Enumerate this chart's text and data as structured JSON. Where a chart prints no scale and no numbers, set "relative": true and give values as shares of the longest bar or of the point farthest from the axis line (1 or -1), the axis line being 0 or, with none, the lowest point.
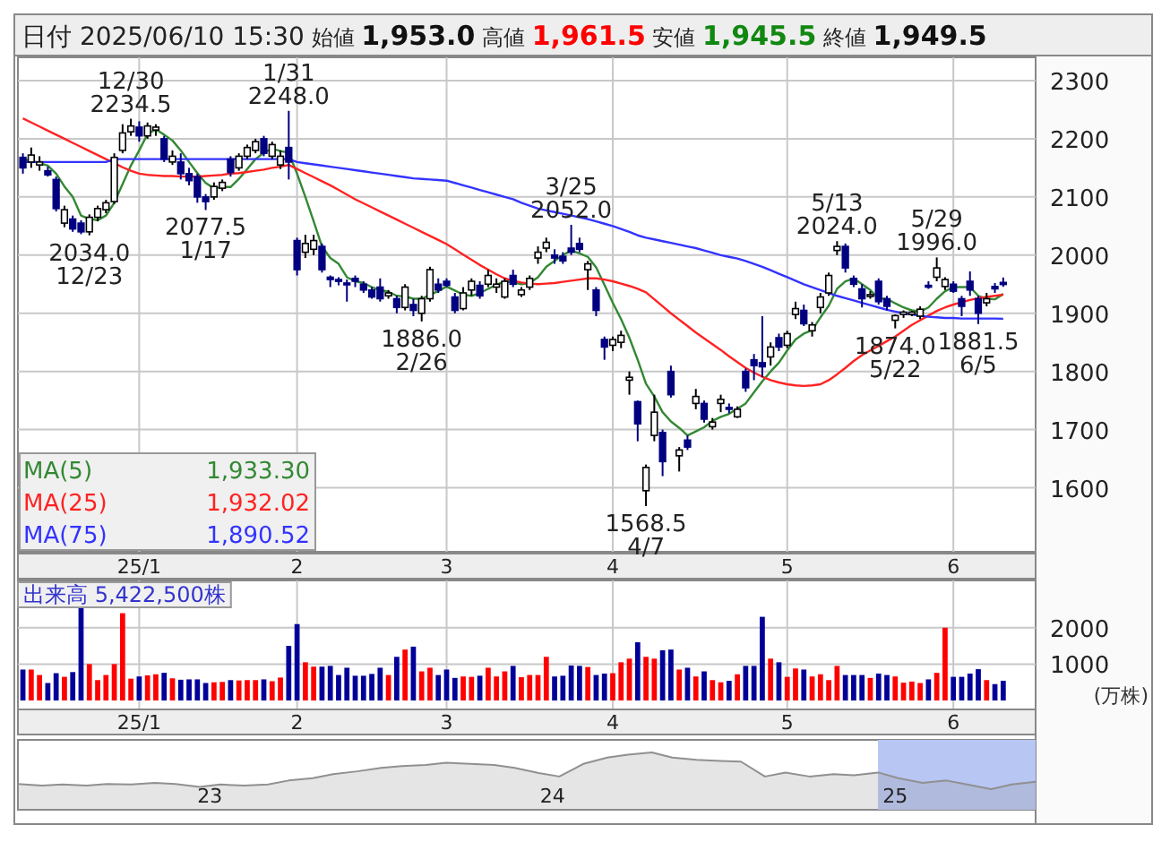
{
  "chart_data": [
    {
      "type": "candlestick",
      "title": "日付 2025/06/10 15:30",
      "annotations": [
        "始値 1,953.0",
        "高値 1,961.5",
        "安値 1,945.5",
        "終値 1,949.5",
        "1,933.30",
        "1,932.02",
        "1,890.52",
        {
          "text": "12/30\n2234.5",
          "y": 2234.5
        },
        {
          "text": "1/31\n2248.0",
          "y": 2248.0
        },
        {
          "text": "3/25\n2052.0",
          "y": 2052.0
        },
        {
          "text": "5/13\n2024.0",
          "y": 2024.0
        },
        {
          "text": "5/29\n1996.0",
          "y": 1996.0
        },
        {
          "text": "2034.0\n12/23",
          "y": 2034.0
        },
        {
          "text": "2077.5\n1/17",
          "y": 2077.5
        },
        {
          "text": "1886.0\n2/26",
          "y": 1886.0
        },
        {
          "text": "1568.5\n4/7",
          "y": 1568.5
        },
        {
          "text": "1874.0\n5/22",
          "y": 1874.0
        },
        {
          "text": "1881.5\n6/5",
          "y": 1881.5
        }
      ],
      "categories": [
        null,
        null,
        null,
        null,
        null,
        null,
        null,
        null,
        null,
        null,
        null,
        null,
        null,
        null,
        "25/1",
        null,
        null,
        null,
        null,
        null,
        null,
        null,
        null,
        null,
        null,
        null,
        null,
        null,
        null,
        null,
        null,
        null,
        null,
        "2",
        null,
        null,
        null,
        null,
        null,
        null,
        null,
        null,
        null,
        null,
        null,
        null,
        null,
        null,
        null,
        null,
        null,
        "3",
        null,
        null,
        null,
        null,
        null,
        null,
        null,
        null,
        null,
        null,
        null,
        null,
        null,
        null,
        null,
        null,
        null,
        null,
        null,
        "4",
        null,
        null,
        null,
        null,
        null,
        null,
        null,
        null,
        null,
        null,
        null,
        null,
        null,
        null,
        null,
        null,
        null,
        null,
        null,
        null,
        "5",
        null,
        null,
        null,
        null,
        null,
        null,
        null,
        null,
        null,
        null,
        null,
        null,
        null,
        null,
        null,
        null,
        null,
        null,
        null,
        "6",
        null,
        null,
        null,
        null,
        null,
        null
      ],
      "ohlc": [
        [
          2168,
          2175,
          2140,
          2150
        ],
        [
          2160,
          2185,
          2150,
          2172
        ],
        [
          2155,
          2170,
          2145,
          2160
        ],
        [
          2145,
          2152,
          2135,
          2138
        ],
        [
          2130,
          2135,
          2075,
          2080
        ],
        [
          2055,
          2085,
          2048,
          2078
        ],
        [
          2062,
          2068,
          2040,
          2045
        ],
        [
          2055,
          2060,
          2036,
          2040
        ],
        [
          2040,
          2070,
          2034,
          2065
        ],
        [
          2065,
          2085,
          2058,
          2080
        ],
        [
          2078,
          2095,
          2072,
          2090
        ],
        [
          2092,
          2175,
          2088,
          2168
        ],
        [
          2180,
          2225,
          2175,
          2210
        ],
        [
          2212,
          2234.5,
          2205,
          2222
        ],
        [
          2220,
          2230,
          2195,
          2205
        ],
        [
          2205,
          2228,
          2200,
          2222
        ],
        [
          2215,
          2225,
          2205,
          2220
        ],
        [
          2200,
          2205,
          2160,
          2165
        ],
        [
          2160,
          2180,
          2155,
          2170
        ],
        [
          2160,
          2175,
          2130,
          2140
        ],
        [
          2140,
          2150,
          2120,
          2128
        ],
        [
          2135,
          2140,
          2090,
          2100
        ],
        [
          2100,
          2105,
          2077.5,
          2092
        ],
        [
          2100,
          2125,
          2095,
          2118
        ],
        [
          2115,
          2130,
          2110,
          2125
        ],
        [
          2165,
          2170,
          2135,
          2142
        ],
        [
          2150,
          2175,
          2145,
          2170
        ],
        [
          2170,
          2190,
          2165,
          2185
        ],
        [
          2180,
          2200,
          2175,
          2195
        ],
        [
          2200,
          2205,
          2170,
          2175
        ],
        [
          2170,
          2195,
          2165,
          2190
        ],
        [
          2155,
          2180,
          2148,
          2170
        ],
        [
          2185,
          2248,
          2130,
          2160
        ],
        [
          2025,
          2030,
          1965,
          1975
        ],
        [
          2005,
          2035,
          1995,
          2020
        ],
        [
          2010,
          2035,
          2000,
          2025
        ],
        [
          2015,
          2020,
          1970,
          1975
        ],
        [
          1962,
          1965,
          1945,
          1958
        ],
        [
          1958,
          1962,
          1948,
          1955
        ],
        [
          1952,
          1958,
          1920,
          1950
        ],
        [
          1960,
          1965,
          1945,
          1955
        ],
        [
          1950,
          1955,
          1935,
          1940
        ],
        [
          1940,
          1945,
          1925,
          1928
        ],
        [
          1945,
          1960,
          1920,
          1925
        ],
        [
          1930,
          1940,
          1925,
          1935
        ],
        [
          1925,
          1930,
          1900,
          1910
        ],
        [
          1910,
          1950,
          1905,
          1945
        ],
        [
          1915,
          1925,
          1895,
          1905
        ],
        [
          1900,
          1930,
          1886,
          1925
        ],
        [
          1925,
          1980,
          1920,
          1975
        ],
        [
          1950,
          1960,
          1935,
          1940
        ],
        [
          1955,
          1960,
          1945,
          1948
        ],
        [
          1928,
          1935,
          1900,
          1905
        ],
        [
          1908,
          1945,
          1905,
          1935
        ],
        [
          1940,
          1960,
          1930,
          1955
        ],
        [
          1948,
          1955,
          1925,
          1930
        ],
        [
          1950,
          1975,
          1945,
          1965
        ],
        [
          1945,
          1960,
          1935,
          1950
        ],
        [
          1928,
          1960,
          1925,
          1955
        ],
        [
          1965,
          1975,
          1945,
          1950
        ],
        [
          1932,
          1945,
          1928,
          1940
        ],
        [
          1945,
          1965,
          1940,
          1960
        ],
        [
          1995,
          2015,
          1985,
          2005
        ],
        [
          2012,
          2030,
          2005,
          2022
        ],
        [
          2000,
          2010,
          1985,
          1995
        ],
        [
          1998,
          2005,
          1985,
          1990
        ],
        [
          2012,
          2052,
          2000,
          2005
        ],
        [
          2020,
          2030,
          2005,
          2010
        ],
        [
          1975,
          1990,
          1940,
          1985
        ],
        [
          1940,
          1945,
          1895,
          1905
        ],
        [
          1855,
          1860,
          1820,
          1842
        ],
        [
          1845,
          1860,
          1835,
          1855
        ],
        [
          1850,
          1870,
          1840,
          1862
        ],
        [
          1785,
          1800,
          1760,
          1790
        ],
        [
          1748,
          1750,
          1680,
          1710
        ],
        [
          1595,
          1640,
          1568.5,
          1635
        ],
        [
          1690,
          1760,
          1680,
          1730
        ],
        [
          1695,
          1700,
          1620,
          1645
        ],
        [
          1800,
          1810,
          1755,
          1760
        ],
        [
          1655,
          1670,
          1628,
          1665
        ],
        [
          1682,
          1690,
          1665,
          1670
        ],
        [
          1745,
          1770,
          1735,
          1757
        ],
        [
          1745,
          1750,
          1712,
          1718
        ],
        [
          1705,
          1720,
          1700,
          1713
        ],
        [
          1745,
          1760,
          1730,
          1752
        ],
        [
          1738,
          1745,
          1728,
          1735
        ],
        [
          1722,
          1740,
          1720,
          1735
        ],
        [
          1800,
          1805,
          1765,
          1772
        ],
        [
          1820,
          1830,
          1785,
          1810
        ],
        [
          1815,
          1895,
          1790,
          1808
        ],
        [
          1825,
          1850,
          1810,
          1842
        ],
        [
          1858,
          1865,
          1835,
          1842
        ],
        [
          1845,
          1870,
          1840,
          1865
        ],
        [
          1898,
          1920,
          1890,
          1908
        ],
        [
          1905,
          1915,
          1878,
          1882
        ],
        [
          1870,
          1885,
          1860,
          1880
        ],
        [
          1910,
          1935,
          1900,
          1928
        ],
        [
          1935,
          1970,
          1930,
          1965
        ],
        [
          2008,
          2024,
          2000,
          2015
        ],
        [
          2015,
          2020,
          1970,
          1978
        ],
        [
          1960,
          1965,
          1945,
          1950
        ],
        [
          1942,
          1950,
          1910,
          1925
        ],
        [
          1930,
          1938,
          1925,
          1932
        ],
        [
          1955,
          1960,
          1915,
          1920
        ],
        [
          1925,
          1930,
          1905,
          1912
        ],
        [
          1888,
          1898,
          1874,
          1896
        ],
        [
          1898,
          1905,
          1892,
          1902
        ],
        [
          1898,
          1904,
          1895,
          1902
        ],
        [
          1895,
          1912,
          1890,
          1907
        ],
        [
          1948,
          1955,
          1942,
          1945
        ],
        [
          1962,
          1996,
          1955,
          1978
        ],
        [
          1946,
          1962,
          1940,
          1958
        ],
        [
          1950,
          1955,
          1935,
          1938
        ],
        [
          1925,
          1930,
          1895,
          1912
        ],
        [
          1955,
          1972,
          1930,
          1940
        ],
        [
          1925,
          1930,
          1881.5,
          1900
        ],
        [
          1918,
          1935,
          1912,
          1925
        ],
        [
          1946,
          1952,
          1935,
          1942
        ],
        [
          1953,
          1961.5,
          1945.5,
          1949.5
        ]
      ],
      "series": [
        {
          "name": "MA(5)",
          "type": "line",
          "color": "#338833",
          "values": [
            2165,
            2162,
            2158,
            2154,
            2140,
            2118,
            2100,
            2068,
            2062,
            2060,
            2068,
            2090,
            2122,
            2154,
            2180,
            2208,
            2216,
            2207,
            2197,
            2180,
            2160,
            2141,
            2124,
            2115,
            2117,
            2117,
            2131,
            2148,
            2165,
            2176,
            2183,
            2179,
            2176,
            2140,
            2100,
            2058,
            2015,
            1995,
            1985,
            1962,
            1955,
            1952,
            1945,
            1940,
            1937,
            1930,
            1929,
            1925,
            1925,
            1932,
            1938,
            1946,
            1939,
            1932,
            1930,
            1935,
            1942,
            1949,
            1955,
            1953,
            1950,
            1952,
            1962,
            1980,
            1990,
            2000,
            2008,
            2003,
            1997,
            1979,
            1949,
            1918,
            1890,
            1858,
            1820,
            1779,
            1757,
            1730,
            1714,
            1703,
            1690,
            1697,
            1704,
            1715,
            1722,
            1727,
            1736,
            1745,
            1764,
            1783,
            1800,
            1815,
            1836,
            1855,
            1865,
            1871,
            1893,
            1913,
            1942,
            1955,
            1960,
            1950,
            1940,
            1925,
            1925,
            1917,
            1910,
            1905,
            1903,
            1910,
            1925,
            1938,
            1945,
            1945,
            1945,
            1930,
            1925,
            1924,
            1933.3
          ]
        },
        {
          "name": "MA(25)",
          "type": "line",
          "color": "#ff2222",
          "values": [
            2235,
            2228,
            2221,
            2214,
            2207,
            2200,
            2193,
            2186,
            2179,
            2172,
            2165,
            2158,
            2151,
            2145,
            2140,
            2138,
            2137,
            2136,
            2136,
            2135,
            2135,
            2135,
            2136,
            2137,
            2138,
            2140,
            2141,
            2143,
            2145,
            2147,
            2150,
            2152,
            2155,
            2148,
            2141,
            2134,
            2127,
            2120,
            2112,
            2104,
            2096,
            2089,
            2082,
            2075,
            2068,
            2061,
            2054,
            2047,
            2040,
            2033,
            2026,
            2019,
            2010,
            2001,
            1992,
            1983,
            1975,
            1967,
            1960,
            1956,
            1953,
            1951,
            1950,
            1951,
            1952,
            1954,
            1956,
            1958,
            1960,
            1960,
            1958,
            1955,
            1951,
            1947,
            1942,
            1936,
            1924,
            1912,
            1900,
            1889,
            1878,
            1867,
            1857,
            1847,
            1837,
            1826,
            1816,
            1806,
            1798,
            1791,
            1785,
            1781,
            1778,
            1776,
            1775,
            1776,
            1778,
            1785,
            1795,
            1806,
            1818,
            1828,
            1836,
            1844,
            1852,
            1860,
            1870,
            1880,
            1888,
            1896,
            1904,
            1910,
            1915,
            1919,
            1923,
            1926,
            1928,
            1930,
            1932.02
          ]
        },
        {
          "name": "MA(75)",
          "type": "line",
          "color": "#3333ff",
          "values": [
            2160,
            2160,
            2160,
            2160,
            2160,
            2160,
            2160,
            2160,
            2160,
            2160,
            2160,
            2165,
            2165,
            2165,
            2165,
            2165,
            2165,
            2165,
            2165,
            2165,
            2165,
            2165,
            2165,
            2165,
            2165,
            2165,
            2165,
            2165,
            2165,
            2165,
            2165,
            2165,
            2165,
            2160,
            2158,
            2156,
            2154,
            2152,
            2150,
            2148,
            2146,
            2144,
            2142,
            2140,
            2138,
            2136,
            2134,
            2132,
            2131,
            2130,
            2129,
            2128,
            2124,
            2120,
            2116,
            2112,
            2108,
            2104,
            2100,
            2096,
            2090,
            2085,
            2080,
            2077,
            2074,
            2071,
            2068,
            2065,
            2062,
            2058,
            2054,
            2050,
            2045,
            2040,
            2034,
            2030,
            2027,
            2024,
            2021,
            2018,
            2015,
            2012,
            2008,
            2004,
            2000,
            1997,
            1994,
            1990,
            1985,
            1980,
            1974,
            1968,
            1962,
            1956,
            1950,
            1945,
            1940,
            1935,
            1930,
            1926,
            1922,
            1918,
            1914,
            1910,
            1906,
            1903,
            1900,
            1898,
            1896,
            1894,
            1893,
            1892,
            1892,
            1891,
            1891,
            1891,
            1891,
            1891,
            1890.52
          ]
        }
      ],
      "ylim": [
        1490,
        2340
      ],
      "yticks": [
        1600,
        1700,
        1800,
        1900,
        2000,
        2100,
        2200,
        2300
      ],
      "grid": true,
      "legend": "bottom left"
    },
    {
      "type": "bar",
      "title": "出来高 5,422,500株",
      "ylabel": "(万株)",
      "categories": [
        null,
        null,
        null,
        null,
        null,
        null,
        null,
        null,
        null,
        null,
        null,
        null,
        null,
        null,
        "25/1",
        null,
        null,
        null,
        null,
        null,
        null,
        null,
        null,
        null,
        null,
        null,
        null,
        null,
        null,
        null,
        null,
        null,
        null,
        "2",
        null,
        null,
        null,
        null,
        null,
        null,
        null,
        null,
        null,
        null,
        null,
        null,
        null,
        null,
        null,
        null,
        null,
        "3",
        null,
        null,
        null,
        null,
        null,
        null,
        null,
        null,
        null,
        null,
        null,
        null,
        null,
        null,
        null,
        null,
        null,
        null,
        null,
        "4",
        null,
        null,
        null,
        null,
        null,
        null,
        null,
        null,
        null,
        null,
        null,
        null,
        null,
        null,
        null,
        null,
        null,
        null,
        null,
        null,
        "5",
        null,
        null,
        null,
        null,
        null,
        null,
        null,
        null,
        null,
        null,
        null,
        null,
        null,
        null,
        null,
        null,
        null,
        null,
        null,
        "6",
        null,
        null,
        null,
        null,
        null,
        null
      ],
      "values": [
        850,
        850,
        700,
        480,
        750,
        650,
        780,
        2600,
        1000,
        560,
        700,
        1000,
        2400,
        600,
        660,
        690,
        720,
        760,
        610,
        570,
        580,
        580,
        480,
        500,
        510,
        560,
        550,
        560,
        560,
        580,
        530,
        630,
        1500,
        2100,
        1050,
        930,
        930,
        950,
        700,
        900,
        680,
        680,
        730,
        900,
        700,
        1200,
        1400,
        1480,
        800,
        900,
        700,
        850,
        620,
        660,
        650,
        680,
        900,
        660,
        800,
        950,
        640,
        700,
        700,
        1200,
        660,
        680,
        960,
        950,
        920,
        700,
        740,
        750,
        1050,
        1150,
        1600,
        1200,
        1150,
        1380,
        1400,
        850,
        900,
        660,
        800,
        560,
        500,
        540,
        720,
        950,
        950,
        2300,
        1150,
        1050,
        650,
        880,
        850,
        660,
        720,
        560,
        950,
        700,
        700,
        700,
        620,
        740,
        700,
        660,
        490,
        520,
        480,
        580,
        760,
        2000,
        650,
        650,
        740,
        860,
        560,
        450,
        542.25
      ],
      "colors": [
        "#000099",
        "#ff0000",
        "#ff0000",
        "#000099",
        "#000099",
        "#ff0000",
        "#000099",
        "#000099",
        "#ff0000",
        "#ff0000",
        "#ff0000",
        "#ff0000",
        "#ff0000",
        "#ff0000",
        "#000099",
        "#ff0000",
        "#ff0000",
        "#000099",
        "#ff0000",
        "#000099",
        "#000099",
        "#000099",
        "#000099",
        "#ff0000",
        "#ff0000",
        "#000099",
        "#ff0000",
        "#ff0000",
        "#ff0000",
        "#000099",
        "#ff0000",
        "#ff0000",
        "#000099",
        "#000099",
        "#ff0000",
        "#ff0000",
        "#000099",
        "#000099",
        "#000099",
        "#000099",
        "#000099",
        "#000099",
        "#000099",
        "#000099",
        "#ff0000",
        "#000099",
        "#ff0000",
        "#000099",
        "#ff0000",
        "#ff0000",
        "#000099",
        "#000099",
        "#000099",
        "#ff0000",
        "#ff0000",
        "#000099",
        "#ff0000",
        "#ff0000",
        "#ff0000",
        "#000099",
        "#ff0000",
        "#ff0000",
        "#ff0000",
        "#ff0000",
        "#000099",
        "#000099",
        "#000099",
        "#000099",
        "#ff0000",
        "#000099",
        "#000099",
        "#ff0000",
        "#ff0000",
        "#ff0000",
        "#000099",
        "#ff0000",
        "#ff0000",
        "#000099",
        "#000099",
        "#ff0000",
        "#000099",
        "#ff0000",
        "#000099",
        "#ff0000",
        "#ff0000",
        "#000099",
        "#ff0000",
        "#000099",
        "#000099",
        "#000099",
        "#ff0000",
        "#000099",
        "#ff0000",
        "#ff0000",
        "#000099",
        "#ff0000",
        "#ff0000",
        "#ff0000",
        "#ff0000",
        "#000099",
        "#000099",
        "#000099",
        "#ff0000",
        "#000099",
        "#000099",
        "#ff0000",
        "#ff0000",
        "#ff0000",
        "#ff0000",
        "#000099",
        "#ff0000",
        "#ff0000",
        "#000099",
        "#000099",
        "#000099",
        "#000099",
        "#ff0000",
        "#000099",
        "#000099"
      ],
      "ylim": [
        0,
        3300
      ],
      "yticks": [
        1000,
        2000
      ],
      "grid": true
    },
    {
      "type": "area",
      "relative": true,
      "color": "#909090",
      "x": [
        2022.44,
        2022.51,
        2022.57,
        2022.64,
        2022.7,
        2022.77,
        2022.84,
        2022.9,
        2022.97,
        2023.03,
        2023.1,
        2023.17,
        2023.23,
        2023.3,
        2023.36,
        2023.43,
        2023.5,
        2023.56,
        2023.63,
        2023.69,
        2023.76,
        2023.83,
        2023.89,
        2023.96,
        2024.02,
        2024.09,
        2024.16,
        2024.22,
        2024.29,
        2024.35,
        2024.42,
        2024.49,
        2024.55,
        2024.62,
        2024.68,
        2024.75,
        2024.82,
        2024.88,
        2024.95,
        2025.01,
        2025.08,
        2025.15,
        2025.21,
        2025.28,
        2025.34,
        2025.41
      ],
      "values": [
        0.45,
        0.42,
        0.44,
        0.42,
        0.45,
        0.44,
        0.47,
        0.45,
        0.4,
        0.44,
        0.42,
        0.44,
        0.51,
        0.55,
        0.62,
        0.67,
        0.73,
        0.76,
        0.78,
        0.82,
        0.8,
        0.78,
        0.73,
        0.64,
        0.58,
        0.8,
        0.91,
        0.96,
        1,
        0.91,
        0.87,
        0.85,
        0.84,
        0.58,
        0.65,
        0.58,
        0.62,
        0.6,
        0.65,
        0.55,
        0.47,
        0.51,
        0.44,
        0.36,
        0.44,
        0.49
      ],
      "xlim": [
        2022.44,
        2025.41
      ],
      "xticks": [
        {
          "value": 2023,
          "label": "23"
        },
        {
          "value": 2024,
          "label": "24"
        },
        {
          "value": 2025,
          "label": "25"
        }
      ],
      "bands": [
        {
          "axis": "x",
          "from": 2024.95,
          "to": 2025.41,
          "color": "#b8c6f4"
        }
      ]
    }
  ]
}
